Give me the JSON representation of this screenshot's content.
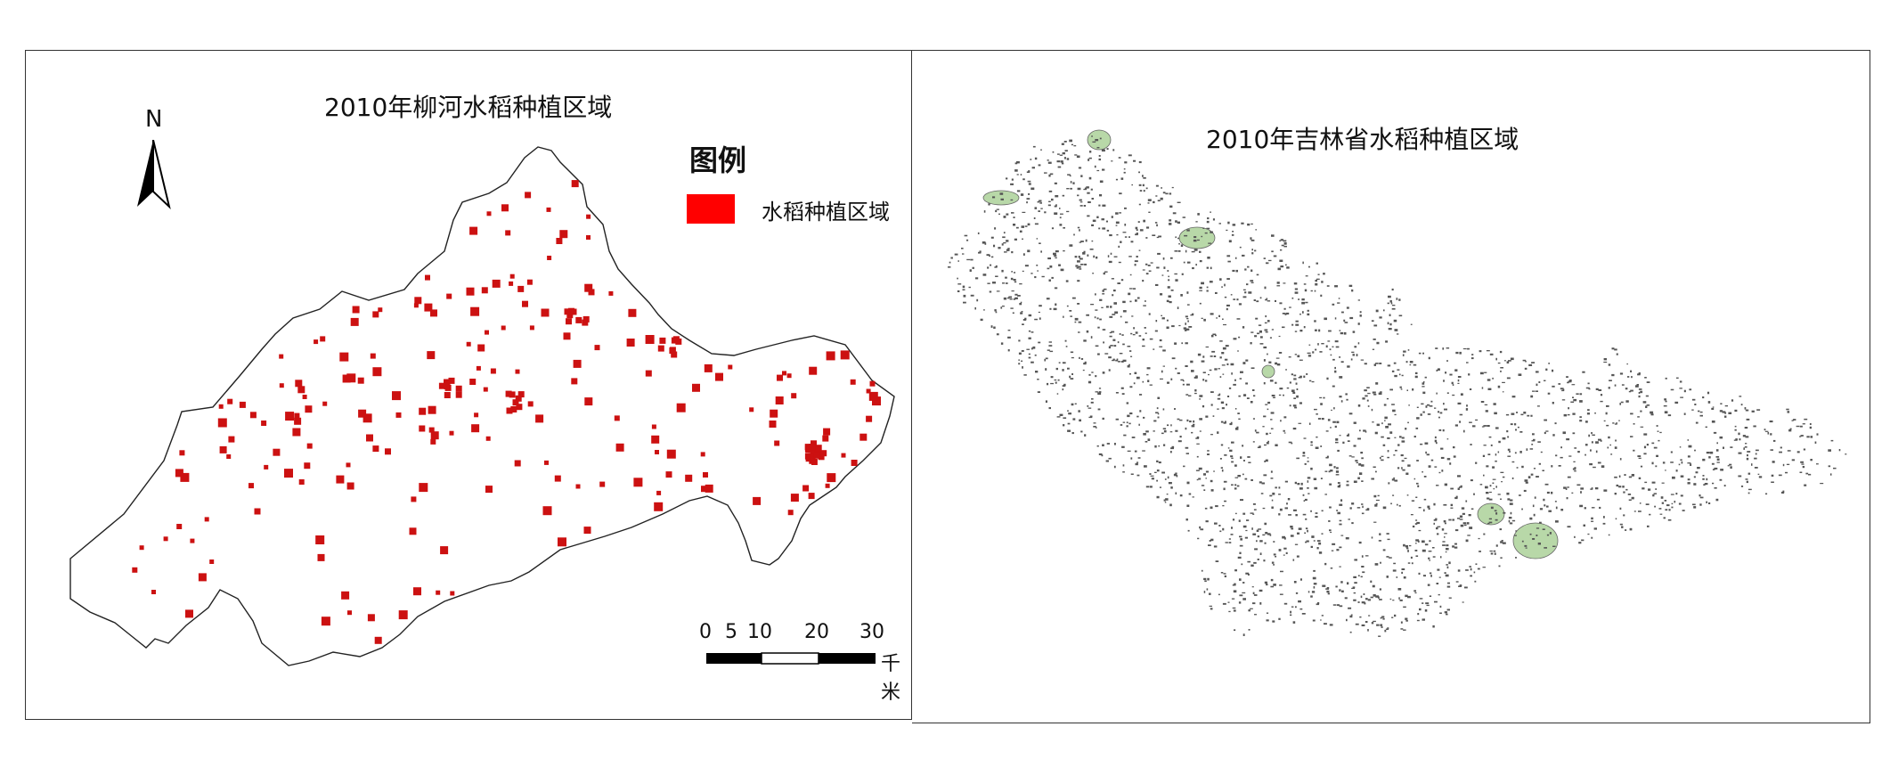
{
  "left_map": {
    "title": "2010年柳河水稻种植区域",
    "north_label": "N",
    "legend": {
      "title": "图例",
      "items": [
        {
          "label": "水稻种植区域",
          "color": "#ff0000"
        }
      ]
    },
    "scale_bar": {
      "ticks": [
        "0",
        "5",
        "10",
        "20",
        "30"
      ],
      "unit": "千米"
    },
    "area_color": "#cc1111"
  },
  "right_map": {
    "title": "2010年吉林省水稻种植区域",
    "dot_color": "#555555",
    "highlight_color": "#b8d8a8"
  }
}
